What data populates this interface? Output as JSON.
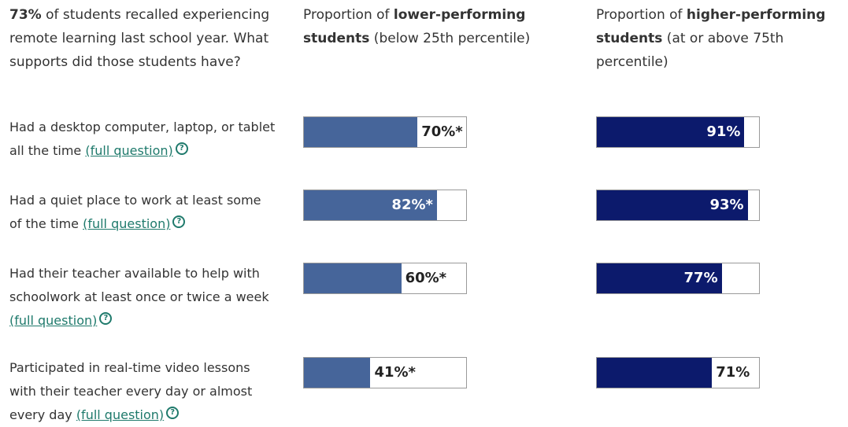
{
  "intro": {
    "bold": "73%",
    "text": " of students recalled experiencing remote learning last school year. What supports did those students have?"
  },
  "columns": [
    {
      "prefix": "Proportion of ",
      "bold": "lower-performing students",
      "suffix": " (below 25th percentile)",
      "color": "#46659a"
    },
    {
      "prefix": "Proportion of ",
      "bold": "higher-performing students",
      "suffix": " (at or above 75th percentile)",
      "color": "#0c1a6c"
    }
  ],
  "xlim": [
    0,
    100
  ],
  "rows": [
    {
      "label": "Had a desktop computer, laptop, or tablet all the time",
      "link": "(full question)",
      "values": [
        70,
        91
      ],
      "value_labels": [
        "70%*",
        "91%"
      ]
    },
    {
      "label": "Had a quiet place to work at least some of the time",
      "link": "(full question)",
      "values": [
        82,
        93
      ],
      "value_labels": [
        "82%*",
        "93%"
      ]
    },
    {
      "label": "Had their teacher available to help with schoolwork at least once or twice a week",
      "link": "(full question)",
      "values": [
        60,
        77
      ],
      "value_labels": [
        "60%*",
        "77%"
      ]
    },
    {
      "label": "Participated in real-time video lessons with their teacher every day or almost every day",
      "link": "(full question)",
      "values": [
        41,
        71
      ],
      "value_labels": [
        "41%*",
        "71%"
      ]
    }
  ]
}
